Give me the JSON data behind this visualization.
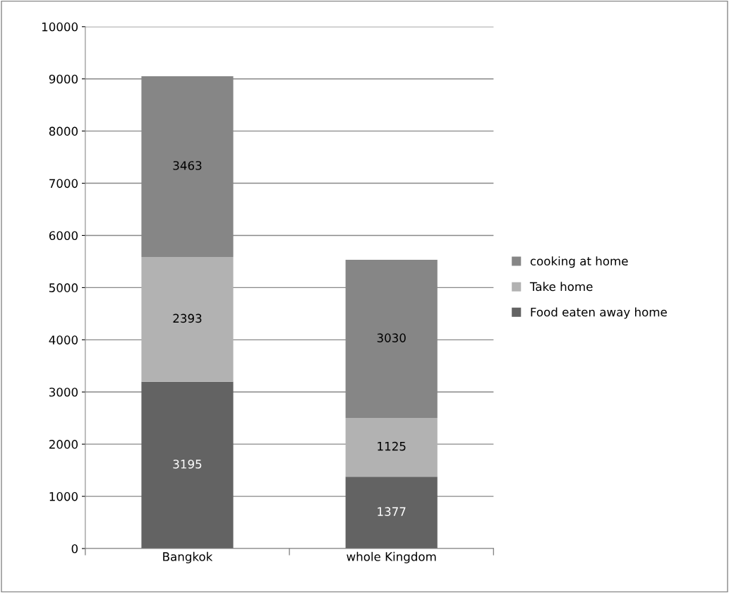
{
  "chart_data": {
    "type": "bar",
    "stacked": true,
    "categories": [
      "Bangkok",
      "whole Kingdom"
    ],
    "series": [
      {
        "name": "Food eaten away home",
        "color": "#636363",
        "values": [
          3195,
          1377
        ]
      },
      {
        "name": "Take home",
        "color": "#b2b2b2",
        "values": [
          2393,
          1125
        ]
      },
      {
        "name": "cooking at home",
        "color": "#868686",
        "values": [
          3463,
          3030
        ]
      }
    ],
    "ylim": [
      0,
      10000
    ],
    "yticks": [
      0,
      1000,
      2000,
      3000,
      4000,
      5000,
      6000,
      7000,
      8000,
      9000,
      10000
    ],
    "grid": "y",
    "legend": "right",
    "data_labels": true
  }
}
